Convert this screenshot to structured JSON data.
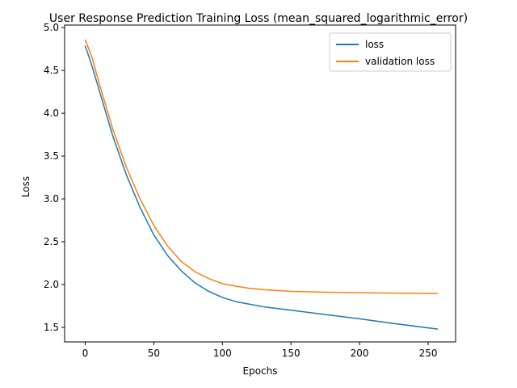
{
  "chart_data": {
    "type": "line",
    "title": "User Response Prediction Training Loss (mean_squared_logarithmic_error)",
    "xlabel": "Epochs",
    "ylabel": "Loss",
    "xlim": [
      -15,
      270
    ],
    "ylim": [
      1.33,
      5.03
    ],
    "xticks": [
      0,
      50,
      100,
      150,
      200,
      250
    ],
    "yticks": [
      1.5,
      2.0,
      2.5,
      3.0,
      3.5,
      4.0,
      4.5,
      5.0
    ],
    "xtick_labels": [
      "0",
      "50",
      "100",
      "150",
      "200",
      "250"
    ],
    "ytick_labels": [
      "1.5",
      "2.0",
      "2.5",
      "3.0",
      "3.5",
      "4.0",
      "4.5",
      "5.0"
    ],
    "grid": false,
    "legend_position": "top-right",
    "series": [
      {
        "name": "loss",
        "color": "#1f77b4",
        "x": [
          0,
          5,
          10,
          20,
          30,
          40,
          50,
          60,
          70,
          80,
          90,
          100,
          110,
          120,
          130,
          140,
          150,
          175,
          200,
          225,
          257
        ],
        "y": [
          4.79,
          4.55,
          4.28,
          3.74,
          3.28,
          2.9,
          2.58,
          2.34,
          2.16,
          2.02,
          1.92,
          1.85,
          1.8,
          1.77,
          1.74,
          1.72,
          1.7,
          1.65,
          1.6,
          1.545,
          1.48
        ]
      },
      {
        "name": "validation loss",
        "color": "#ff7f0e",
        "x": [
          0,
          5,
          10,
          20,
          30,
          40,
          50,
          60,
          70,
          80,
          90,
          100,
          110,
          120,
          130,
          140,
          150,
          175,
          200,
          225,
          257
        ],
        "y": [
          4.86,
          4.65,
          4.36,
          3.82,
          3.37,
          3.0,
          2.69,
          2.45,
          2.27,
          2.15,
          2.07,
          2.01,
          1.98,
          1.955,
          1.94,
          1.93,
          1.92,
          1.91,
          1.905,
          1.9,
          1.895
        ]
      }
    ]
  }
}
